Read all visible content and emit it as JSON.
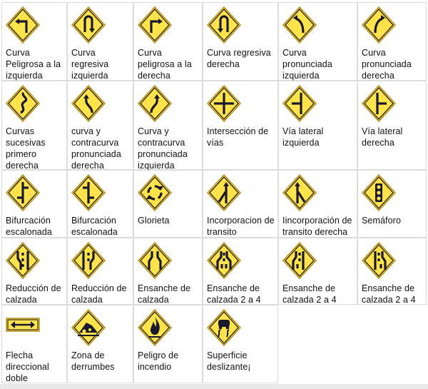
{
  "colors": {
    "sign": "#ffe34a",
    "signEdge": "#b58d1a",
    "symbol": "#1a1a2e",
    "border": "#dcdcdc"
  },
  "signs": [
    {
      "label": "Curva Peligrosa a la izquierda",
      "icon": "curve-left-icon"
    },
    {
      "label": "Curva regresiva izquierda",
      "icon": "u-turn-left-icon"
    },
    {
      "label": "Curva peligrosa a la derecha",
      "icon": "curve-right-icon"
    },
    {
      "label": "Curva regresiva derecha",
      "icon": "u-turn-right-icon"
    },
    {
      "label": "Curva pronunciada izquierda",
      "icon": "sharp-curve-left-icon"
    },
    {
      "label": "Curva pronunciada derecha",
      "icon": "sharp-curve-right-icon"
    },
    {
      "label": "Curvas sucesivas primero derecha",
      "icon": "winding-road-icon"
    },
    {
      "label": "curva y contracurva pronunciada derecha",
      "icon": "reverse-curve-right-icon"
    },
    {
      "label": "Curva y contracurva pronunciada izquierda",
      "icon": "reverse-curve-left-icon"
    },
    {
      "label": "Intersección de vías",
      "icon": "crossroad-icon"
    },
    {
      "label": "Vía lateral izquierda",
      "icon": "side-road-left-icon"
    },
    {
      "label": "Vía lateral derecha",
      "icon": "side-road-right-icon"
    },
    {
      "label": "Bifurcación escalonada",
      "icon": "staggered-junction-icon"
    },
    {
      "label": "Bifurcación escalonada",
      "icon": "staggered-junction-alt-icon"
    },
    {
      "label": "Glorieta",
      "icon": "roundabout-icon"
    },
    {
      "label": "Incorporacion de transito izquierda",
      "icon": "merge-left-icon"
    },
    {
      "label": "Iincorporación de transito derecha",
      "icon": "merge-right-icon"
    },
    {
      "label": "Semáforo",
      "icon": "traffic-light-icon"
    },
    {
      "label": "Reducción de calzada",
      "icon": "road-narrows-icon"
    },
    {
      "label": "Reducción de calzada",
      "icon": "road-narrows-alt-icon"
    },
    {
      "label": "Ensanche de calzada",
      "icon": "road-widens-icon"
    },
    {
      "label": "Ensanche de calzada 2 a 4",
      "icon": "road-widens-2-4-icon"
    },
    {
      "label": "Ensanche de calzada 2 a 4",
      "icon": "road-widens-2-4-alt-icon"
    },
    {
      "label": "Ensanche de calzada 2 a 4",
      "icon": "road-widens-2-4-right-icon"
    },
    {
      "label": "Flecha direccional doble",
      "icon": "double-arrow-icon"
    },
    {
      "label": "Zona de derrumbes",
      "icon": "landslide-icon"
    },
    {
      "label": "Peligro de incendio",
      "icon": "fire-danger-icon"
    },
    {
      "label": "Superficie deslizante¡",
      "icon": "slippery-road-icon"
    }
  ]
}
